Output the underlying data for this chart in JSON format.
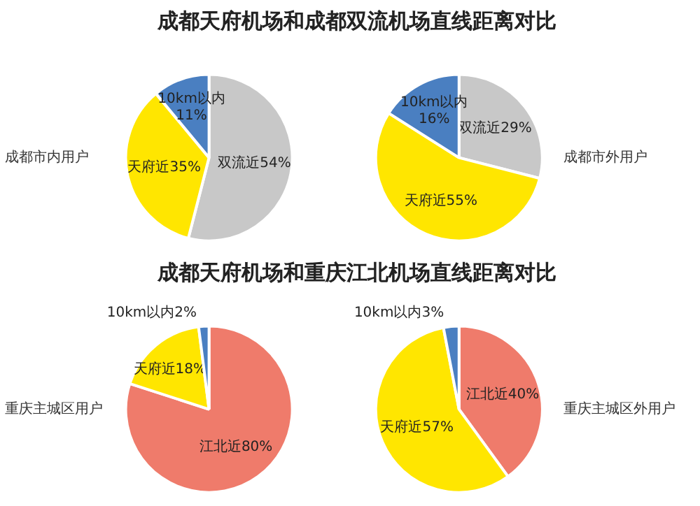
{
  "chart_data": [
    {
      "type": "pie",
      "title": "成都天府机场和成都双流机场直线距离对比",
      "subtitle": "成都市内用户",
      "categories": [
        "双流近",
        "天府近",
        "10km以内"
      ],
      "values": [
        54,
        35,
        11
      ],
      "value_labels": [
        "54%",
        "35%",
        "11%"
      ],
      "colors": [
        "#c8c8c8",
        "#ffe600",
        "#4a7fc1"
      ]
    },
    {
      "type": "pie",
      "subtitle": "成都市外用户",
      "categories": [
        "双流近",
        "天府近",
        "10km以内"
      ],
      "values": [
        29,
        55,
        16
      ],
      "value_labels": [
        "29%",
        "55%",
        "16%"
      ],
      "colors": [
        "#c8c8c8",
        "#ffe600",
        "#4a7fc1"
      ]
    },
    {
      "type": "pie",
      "title": "成都天府机场和重庆江北机场直线距离对比",
      "subtitle": "重庆主城区用户",
      "categories": [
        "江北近",
        "天府近",
        "10km以内"
      ],
      "values": [
        80,
        18,
        2
      ],
      "value_labels": [
        "80%",
        "18%",
        "2%"
      ],
      "colors": [
        "#ef7b6b",
        "#ffe600",
        "#4a7fc1"
      ]
    },
    {
      "type": "pie",
      "subtitle": "重庆主城区外用户",
      "categories": [
        "江北近",
        "天府近",
        "10km以内"
      ],
      "values": [
        40,
        57,
        3
      ],
      "value_labels": [
        "40%",
        "57%",
        "3%"
      ],
      "colors": [
        "#ef7b6b",
        "#ffe600",
        "#4a7fc1"
      ]
    }
  ]
}
